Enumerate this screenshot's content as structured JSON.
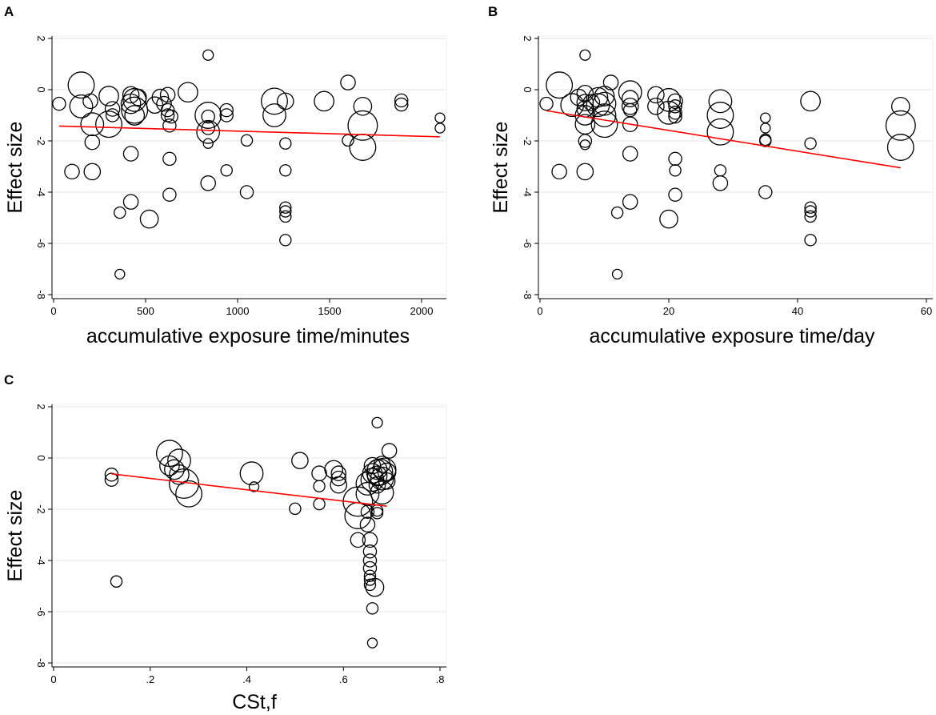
{
  "chart_data": [
    {
      "panel": "A",
      "type": "scatter",
      "xlabel": "accumulative exposure time/minutes",
      "ylabel": "Effect size",
      "xlim": [
        0,
        2100
      ],
      "ylim": [
        -8,
        2
      ],
      "xticks": [
        0,
        500,
        1000,
        1500,
        2000
      ],
      "yticks": [
        -8,
        -6,
        -4,
        -2,
        0,
        2
      ],
      "grid": true,
      "fit_line": {
        "x": [
          30,
          2100
        ],
        "y": [
          -1.42,
          -1.84
        ],
        "color": "#ff0000"
      },
      "points": [
        {
          "x": 30,
          "y": -0.55,
          "w": 2
        },
        {
          "x": 100,
          "y": -3.2,
          "w": 2.5
        },
        {
          "x": 150,
          "y": 0.18,
          "w": 6
        },
        {
          "x": 150,
          "y": -0.65,
          "w": 5
        },
        {
          "x": 200,
          "y": -0.45,
          "w": 2.5
        },
        {
          "x": 210,
          "y": -1.35,
          "w": 5
        },
        {
          "x": 210,
          "y": -2.05,
          "w": 2.5
        },
        {
          "x": 210,
          "y": -3.2,
          "w": 3
        },
        {
          "x": 300,
          "y": -0.25,
          "w": 4
        },
        {
          "x": 300,
          "y": -1.35,
          "w": 6
        },
        {
          "x": 320,
          "y": -0.75,
          "w": 2.5
        },
        {
          "x": 320,
          "y": -1.0,
          "w": 2
        },
        {
          "x": 360,
          "y": -4.8,
          "w": 1.5
        },
        {
          "x": 360,
          "y": -7.2,
          "w": 1
        },
        {
          "x": 420,
          "y": -0.2,
          "w": 3
        },
        {
          "x": 420,
          "y": -0.55,
          "w": 4
        },
        {
          "x": 420,
          "y": -2.5,
          "w": 2.5
        },
        {
          "x": 420,
          "y": -4.38,
          "w": 2.5
        },
        {
          "x": 440,
          "y": -0.4,
          "w": 5
        },
        {
          "x": 440,
          "y": -0.8,
          "w": 6
        },
        {
          "x": 440,
          "y": -1.0,
          "w": 4
        },
        {
          "x": 460,
          "y": -0.3,
          "w": 3
        },
        {
          "x": 520,
          "y": -5.05,
          "w": 3.5
        },
        {
          "x": 550,
          "y": -0.6,
          "w": 3
        },
        {
          "x": 580,
          "y": -0.3,
          "w": 3
        },
        {
          "x": 600,
          "y": -0.55,
          "w": 2.5
        },
        {
          "x": 620,
          "y": -0.2,
          "w": 2.5
        },
        {
          "x": 620,
          "y": -0.8,
          "w": 2
        },
        {
          "x": 620,
          "y": -1.0,
          "w": 2
        },
        {
          "x": 630,
          "y": -1.4,
          "w": 2
        },
        {
          "x": 630,
          "y": -2.7,
          "w": 2
        },
        {
          "x": 630,
          "y": -4.1,
          "w": 2
        },
        {
          "x": 640,
          "y": -1.05,
          "w": 2
        },
        {
          "x": 730,
          "y": -0.1,
          "w": 4
        },
        {
          "x": 840,
          "y": 1.35,
          "w": 1.2
        },
        {
          "x": 840,
          "y": -1.05,
          "w": 2
        },
        {
          "x": 840,
          "y": -1.5,
          "w": 2
        },
        {
          "x": 840,
          "y": -1.65,
          "w": 5
        },
        {
          "x": 840,
          "y": -1.0,
          "w": 6
        },
        {
          "x": 840,
          "y": -2.1,
          "w": 1
        },
        {
          "x": 840,
          "y": -3.65,
          "w": 2.5
        },
        {
          "x": 940,
          "y": -0.8,
          "w": 2
        },
        {
          "x": 940,
          "y": -1.0,
          "w": 2
        },
        {
          "x": 940,
          "y": -3.15,
          "w": 1.5
        },
        {
          "x": 1050,
          "y": -1.98,
          "w": 1.5
        },
        {
          "x": 1050,
          "y": -4.0,
          "w": 2
        },
        {
          "x": 1200,
          "y": -0.45,
          "w": 6
        },
        {
          "x": 1200,
          "y": -1.0,
          "w": 5
        },
        {
          "x": 1260,
          "y": -0.45,
          "w": 3
        },
        {
          "x": 1260,
          "y": -2.1,
          "w": 1.5
        },
        {
          "x": 1260,
          "y": -3.15,
          "w": 1.5
        },
        {
          "x": 1260,
          "y": -4.6,
          "w": 1.5
        },
        {
          "x": 1260,
          "y": -4.75,
          "w": 1.5
        },
        {
          "x": 1260,
          "y": -4.95,
          "w": 1.5
        },
        {
          "x": 1260,
          "y": -5.87,
          "w": 1.5
        },
        {
          "x": 1470,
          "y": -0.45,
          "w": 4
        },
        {
          "x": 1600,
          "y": 0.28,
          "w": 2.5
        },
        {
          "x": 1600,
          "y": -1.98,
          "w": 1.5
        },
        {
          "x": 1680,
          "y": -0.65,
          "w": 3.5
        },
        {
          "x": 1680,
          "y": -1.4,
          "w": 7
        },
        {
          "x": 1680,
          "y": -2.25,
          "w": 6
        },
        {
          "x": 1890,
          "y": -0.42,
          "w": 2
        },
        {
          "x": 1890,
          "y": -0.58,
          "w": 2
        },
        {
          "x": 2100,
          "y": -1.1,
          "w": 1
        },
        {
          "x": 2100,
          "y": -1.5,
          "w": 1
        }
      ]
    },
    {
      "panel": "B",
      "type": "scatter",
      "xlabel": "accumulative exposure time/day",
      "ylabel": "Effect size",
      "xlim": [
        0,
        60
      ],
      "ylim": [
        -8,
        2
      ],
      "xticks": [
        0,
        20,
        40,
        60
      ],
      "yticks": [
        -8,
        -6,
        -4,
        -2,
        0,
        2
      ],
      "grid": true,
      "fit_line": {
        "x": [
          1,
          56
        ],
        "y": [
          -0.82,
          -3.05
        ],
        "color": "#ff0000"
      },
      "points": [
        {
          "x": 1,
          "y": -0.55,
          "w": 2
        },
        {
          "x": 3,
          "y": 0.18,
          "w": 6
        },
        {
          "x": 3,
          "y": -3.2,
          "w": 2.5
        },
        {
          "x": 5,
          "y": -0.6,
          "w": 5
        },
        {
          "x": 6,
          "y": -0.3,
          "w": 3
        },
        {
          "x": 7,
          "y": 1.35,
          "w": 1.2
        },
        {
          "x": 7,
          "y": -0.15,
          "w": 3
        },
        {
          "x": 7,
          "y": -0.5,
          "w": 3
        },
        {
          "x": 7,
          "y": -0.75,
          "w": 3
        },
        {
          "x": 7,
          "y": -1.0,
          "w": 4
        },
        {
          "x": 7,
          "y": -1.35,
          "w": 4
        },
        {
          "x": 7,
          "y": -2.0,
          "w": 2
        },
        {
          "x": 7,
          "y": -2.15,
          "w": 1
        },
        {
          "x": 7,
          "y": -3.2,
          "w": 3
        },
        {
          "x": 8,
          "y": -0.5,
          "w": 3
        },
        {
          "x": 9,
          "y": -0.3,
          "w": 4
        },
        {
          "x": 9,
          "y": -0.6,
          "w": 5
        },
        {
          "x": 10,
          "y": -0.25,
          "w": 4
        },
        {
          "x": 10,
          "y": -0.55,
          "w": 5
        },
        {
          "x": 10,
          "y": -1.0,
          "w": 5
        },
        {
          "x": 10,
          "y": -1.35,
          "w": 6
        },
        {
          "x": 11,
          "y": 0.28,
          "w": 2.5
        },
        {
          "x": 12,
          "y": -4.8,
          "w": 1.5
        },
        {
          "x": 12,
          "y": -7.2,
          "w": 1
        },
        {
          "x": 14,
          "y": -0.1,
          "w": 5
        },
        {
          "x": 14,
          "y": -0.35,
          "w": 3
        },
        {
          "x": 14,
          "y": -0.65,
          "w": 3
        },
        {
          "x": 14,
          "y": -0.8,
          "w": 2
        },
        {
          "x": 14,
          "y": -1.35,
          "w": 2.5
        },
        {
          "x": 14,
          "y": -2.5,
          "w": 2.5
        },
        {
          "x": 14,
          "y": -4.38,
          "w": 2.5
        },
        {
          "x": 18,
          "y": -0.2,
          "w": 3
        },
        {
          "x": 18,
          "y": -0.65,
          "w": 3
        },
        {
          "x": 20,
          "y": -0.4,
          "w": 5
        },
        {
          "x": 20,
          "y": -0.9,
          "w": 5
        },
        {
          "x": 20,
          "y": -5.05,
          "w": 3.5
        },
        {
          "x": 21,
          "y": -0.45,
          "w": 2.5
        },
        {
          "x": 21,
          "y": -0.65,
          "w": 2
        },
        {
          "x": 21,
          "y": -0.9,
          "w": 2
        },
        {
          "x": 21,
          "y": -1.05,
          "w": 2
        },
        {
          "x": 21,
          "y": -2.7,
          "w": 2
        },
        {
          "x": 21,
          "y": -3.15,
          "w": 1.5
        },
        {
          "x": 21,
          "y": -4.1,
          "w": 2
        },
        {
          "x": 28,
          "y": -0.45,
          "w": 5
        },
        {
          "x": 28,
          "y": -1.0,
          "w": 6
        },
        {
          "x": 28,
          "y": -1.65,
          "w": 6
        },
        {
          "x": 28,
          "y": -3.15,
          "w": 1.5
        },
        {
          "x": 28,
          "y": -3.65,
          "w": 2.5
        },
        {
          "x": 35,
          "y": -1.1,
          "w": 1
        },
        {
          "x": 35,
          "y": -1.5,
          "w": 1
        },
        {
          "x": 35,
          "y": -1.95,
          "w": 1.5
        },
        {
          "x": 35,
          "y": -2.0,
          "w": 1.5
        },
        {
          "x": 35,
          "y": -4.0,
          "w": 2
        },
        {
          "x": 42,
          "y": -0.45,
          "w": 4
        },
        {
          "x": 42,
          "y": -2.1,
          "w": 1.5
        },
        {
          "x": 42,
          "y": -4.6,
          "w": 1.5
        },
        {
          "x": 42,
          "y": -4.75,
          "w": 1.5
        },
        {
          "x": 42,
          "y": -4.95,
          "w": 1.5
        },
        {
          "x": 42,
          "y": -5.87,
          "w": 1.5
        },
        {
          "x": 56,
          "y": -0.65,
          "w": 3.5
        },
        {
          "x": 56,
          "y": -1.4,
          "w": 7
        },
        {
          "x": 56,
          "y": -2.25,
          "w": 6
        }
      ]
    },
    {
      "panel": "C",
      "type": "scatter",
      "xlabel": "CSt,f",
      "ylabel": "Effect size",
      "xlim": [
        0,
        0.8
      ],
      "ylim": [
        -8,
        2
      ],
      "xticks": [
        0,
        0.2,
        0.4,
        0.6,
        0.8
      ],
      "xtick_labels": [
        "0",
        ".2",
        ".4",
        ".6",
        ".8"
      ],
      "yticks": [
        -8,
        -6,
        -4,
        -2,
        0,
        2
      ],
      "grid": true,
      "fit_line": {
        "x": [
          0.12,
          0.69
        ],
        "y": [
          -0.62,
          -1.88
        ],
        "color": "#ff0000"
      },
      "points": [
        {
          "x": 0.12,
          "y": -0.65,
          "w": 2
        },
        {
          "x": 0.12,
          "y": -0.85,
          "w": 2
        },
        {
          "x": 0.13,
          "y": -4.82,
          "w": 1.5
        },
        {
          "x": 0.24,
          "y": 0.18,
          "w": 6
        },
        {
          "x": 0.24,
          "y": -0.3,
          "w": 4
        },
        {
          "x": 0.25,
          "y": -0.45,
          "w": 4
        },
        {
          "x": 0.26,
          "y": -0.1,
          "w": 5
        },
        {
          "x": 0.26,
          "y": -0.65,
          "w": 4
        },
        {
          "x": 0.27,
          "y": -1.0,
          "w": 7
        },
        {
          "x": 0.28,
          "y": -1.4,
          "w": 6
        },
        {
          "x": 0.41,
          "y": -0.6,
          "w": 5
        },
        {
          "x": 0.415,
          "y": -1.12,
          "w": 1
        },
        {
          "x": 0.5,
          "y": -1.98,
          "w": 1.5
        },
        {
          "x": 0.51,
          "y": -0.1,
          "w": 3
        },
        {
          "x": 0.55,
          "y": -0.6,
          "w": 2.5
        },
        {
          "x": 0.55,
          "y": -1.1,
          "w": 1.5
        },
        {
          "x": 0.55,
          "y": -1.8,
          "w": 1.5
        },
        {
          "x": 0.58,
          "y": -0.45,
          "w": 3.5
        },
        {
          "x": 0.59,
          "y": -0.6,
          "w": 2.5
        },
        {
          "x": 0.59,
          "y": -0.8,
          "w": 2.5
        },
        {
          "x": 0.59,
          "y": -1.05,
          "w": 3
        },
        {
          "x": 0.63,
          "y": -1.7,
          "w": 7
        },
        {
          "x": 0.63,
          "y": -2.25,
          "w": 6
        },
        {
          "x": 0.63,
          "y": -3.2,
          "w": 2.5
        },
        {
          "x": 0.65,
          "y": -1.0,
          "w": 5
        },
        {
          "x": 0.65,
          "y": -1.4,
          "w": 5
        },
        {
          "x": 0.65,
          "y": -2.1,
          "w": 2
        },
        {
          "x": 0.65,
          "y": -2.6,
          "w": 2.5
        },
        {
          "x": 0.655,
          "y": -3.2,
          "w": 2.5
        },
        {
          "x": 0.655,
          "y": -3.65,
          "w": 2
        },
        {
          "x": 0.655,
          "y": -4.0,
          "w": 2
        },
        {
          "x": 0.655,
          "y": -4.3,
          "w": 2
        },
        {
          "x": 0.655,
          "y": -4.6,
          "w": 1.5
        },
        {
          "x": 0.655,
          "y": -4.75,
          "w": 1.5
        },
        {
          "x": 0.655,
          "y": -4.95,
          "w": 1.5
        },
        {
          "x": 0.66,
          "y": -5.87,
          "w": 1.5
        },
        {
          "x": 0.66,
          "y": -7.22,
          "w": 1
        },
        {
          "x": 0.66,
          "y": -0.3,
          "w": 3
        },
        {
          "x": 0.66,
          "y": -0.6,
          "w": 4
        },
        {
          "x": 0.66,
          "y": -0.85,
          "w": 5
        },
        {
          "x": 0.665,
          "y": -5.05,
          "w": 3.5
        },
        {
          "x": 0.67,
          "y": 1.38,
          "w": 1.2
        },
        {
          "x": 0.67,
          "y": -0.45,
          "w": 4
        },
        {
          "x": 0.67,
          "y": -0.7,
          "w": 4
        },
        {
          "x": 0.67,
          "y": -1.05,
          "w": 3
        },
        {
          "x": 0.67,
          "y": -2.05,
          "w": 1.5
        },
        {
          "x": 0.67,
          "y": -2.15,
          "w": 1.5
        },
        {
          "x": 0.675,
          "y": -0.55,
          "w": 6
        },
        {
          "x": 0.68,
          "y": -0.25,
          "w": 3
        },
        {
          "x": 0.68,
          "y": -0.8,
          "w": 5
        },
        {
          "x": 0.68,
          "y": -1.35,
          "w": 5
        },
        {
          "x": 0.685,
          "y": -0.45,
          "w": 5
        },
        {
          "x": 0.69,
          "y": -0.9,
          "w": 3
        },
        {
          "x": 0.69,
          "y": -0.55,
          "w": 3.5
        },
        {
          "x": 0.695,
          "y": 0.28,
          "w": 2.5
        }
      ]
    }
  ]
}
